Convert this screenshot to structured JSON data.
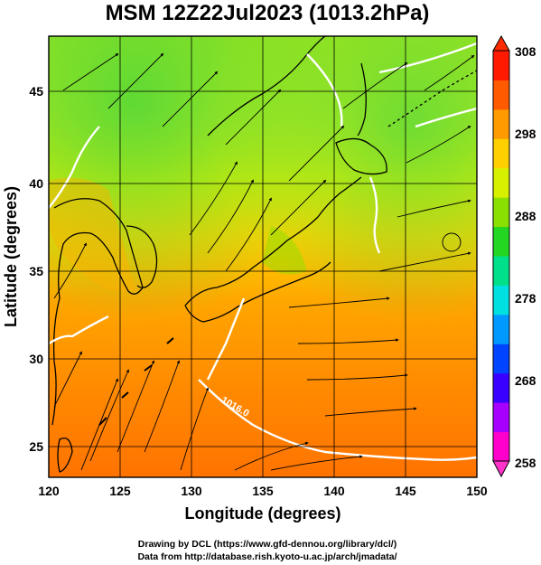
{
  "title": "MSM 12Z22Jul2023 (1013.2hPa)",
  "xlabel": "Longitude (degrees)",
  "ylabel": "Latitude  (degrees)",
  "credit_line1": "Drawing by DCL (https://www.gfd-dennou.org/library/dcl/)",
  "credit_line2": "Data from http://database.rish.kyoto-u.ac.jp/arch/jmadata/",
  "contour_label": "1016.0",
  "colors": {
    "colorbar": [
      "#ff00cc",
      "#a800ff",
      "#3a00ff",
      "#0044ff",
      "#0099ff",
      "#00e0e0",
      "#00e08a",
      "#22d622",
      "#8ae000",
      "#d6f000",
      "#ffd000",
      "#ff9a00",
      "#ff5a00",
      "#ff1a00"
    ],
    "contour": "#ffffff",
    "coast": "#000000"
  },
  "chart_data": {
    "type": "heatmap",
    "field": "temperature (K) with streamlines and pressure contours",
    "xlim": [
      120,
      150
    ],
    "ylim": [
      22.4,
      47.6
    ],
    "x_ticks": [
      "120",
      "125",
      "130",
      "135",
      "140",
      "145",
      "150"
    ],
    "y_ticks": [
      "25",
      "30",
      "35",
      "40",
      "45"
    ],
    "colorbar": {
      "min": 258,
      "max": 308,
      "tick_labels": [
        "308",
        "298",
        "288",
        "278",
        "268",
        "258"
      ]
    },
    "grid": true,
    "contour_labels": [
      "1016.0"
    ]
  }
}
